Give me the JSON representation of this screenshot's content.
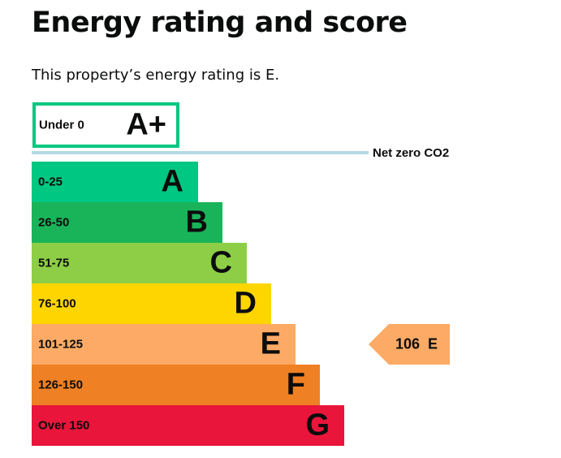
{
  "title": "Energy rating and score",
  "subtitle": "This property’s energy rating is E.",
  "chart_data": {
    "type": "bar",
    "bands": [
      {
        "range": "Under 0",
        "letter": "A+",
        "color": "#00c781",
        "outline": true
      },
      {
        "range": "0-25",
        "letter": "A",
        "color": "#00c781"
      },
      {
        "range": "26-50",
        "letter": "B",
        "color": "#19b459"
      },
      {
        "range": "51-75",
        "letter": "C",
        "color": "#8dce46"
      },
      {
        "range": "76-100",
        "letter": "D",
        "color": "#ffd500"
      },
      {
        "range": "101-125",
        "letter": "E",
        "color": "#fcaa65"
      },
      {
        "range": "126-150",
        "letter": "F",
        "color": "#ef8023"
      },
      {
        "range": "Over 150",
        "letter": "G",
        "color": "#e9153b"
      }
    ],
    "net_zero_label": "Net zero CO2",
    "current": {
      "score": 106,
      "letter": "E",
      "label": "106  E",
      "color": "#fcaa65"
    }
  }
}
